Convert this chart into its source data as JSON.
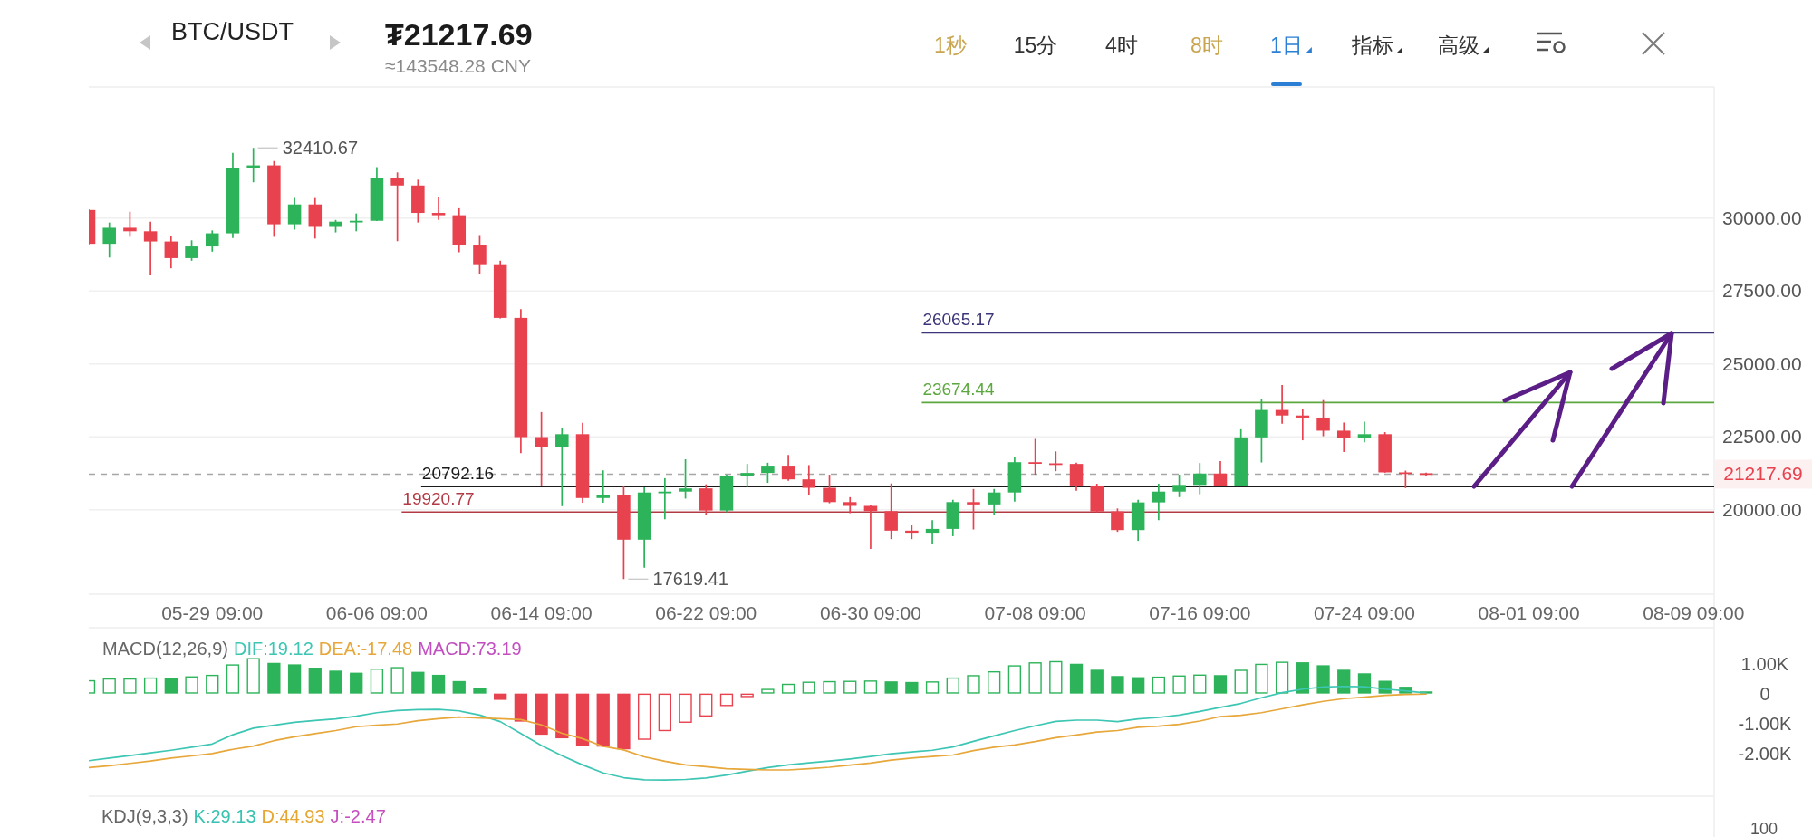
{
  "chart_data": [
    {
      "type": "other",
      "title": "BTC/USDT",
      "subtitle": "₮21217.69",
      "annotations": [
        "≈143548.28 CNY",
        "1秒",
        "15分",
        "4时",
        "8时",
        "1日",
        "指标",
        "高级"
      ]
    },
    {
      "type": "candlestick",
      "x": [
        "--05-23",
        "--05-24",
        "--05-25",
        "--05-26",
        "--05-27",
        "--05-28",
        "--05-29",
        "--05-30",
        "--05-31",
        "--06-01",
        "--06-02",
        "--06-03",
        "--06-04",
        "--06-05",
        "--06-06",
        "--06-07",
        "--06-08",
        "--06-09",
        "--06-10",
        "--06-11",
        "--06-12",
        "--06-13",
        "--06-14",
        "--06-15",
        "--06-16",
        "--06-17",
        "--06-18",
        "--06-19",
        "--06-20",
        "--06-21",
        "--06-22",
        "--06-23",
        "--06-24",
        "--06-25",
        "--06-26",
        "--06-27",
        "--06-28",
        "--06-29",
        "--06-30",
        "--07-01",
        "--07-02",
        "--07-03",
        "--07-04",
        "--07-05",
        "--07-06",
        "--07-07",
        "--07-08",
        "--07-09",
        "--07-10",
        "--07-11",
        "--07-12",
        "--07-13",
        "--07-14",
        "--07-15",
        "--07-16",
        "--07-17",
        "--07-18",
        "--07-19",
        "--07-20",
        "--07-21",
        "--07-22",
        "--07-23",
        "--07-24",
        "--07-25",
        "--07-26",
        "--07-27"
      ],
      "ohlc": [
        [
          30280,
          30300,
          29100,
          29120
        ],
        [
          29120,
          29850,
          28650,
          29670
        ],
        [
          29670,
          30220,
          29360,
          29550
        ],
        [
          29550,
          29880,
          28040,
          29200
        ],
        [
          29200,
          29390,
          28280,
          28630
        ],
        [
          28630,
          29240,
          28540,
          29030
        ],
        [
          29030,
          29580,
          28850,
          29480
        ],
        [
          29480,
          32240,
          29320,
          31730
        ],
        [
          31730,
          32410.67,
          31230,
          31810
        ],
        [
          31810,
          31960,
          29360,
          29790
        ],
        [
          29790,
          30690,
          29610,
          30470
        ],
        [
          30470,
          30690,
          29300,
          29700
        ],
        [
          29700,
          29940,
          29510,
          29880
        ],
        [
          29880,
          30160,
          29550,
          29910
        ],
        [
          29910,
          31750,
          29900,
          31390
        ],
        [
          31390,
          31570,
          29210,
          31120
        ],
        [
          31120,
          31320,
          29850,
          30180
        ],
        [
          30180,
          30710,
          29940,
          30100
        ],
        [
          30100,
          30340,
          28830,
          29080
        ],
        [
          29080,
          29420,
          28100,
          28420
        ],
        [
          28420,
          28540,
          26560,
          26580
        ],
        [
          26580,
          26880,
          21940,
          22490
        ],
        [
          22490,
          23350,
          20830,
          22150
        ],
        [
          22150,
          22800,
          20120,
          22590
        ],
        [
          22590,
          22980,
          20240,
          20400
        ],
        [
          20400,
          21350,
          20240,
          20500
        ],
        [
          20500,
          20830,
          17619.41,
          18970
        ],
        [
          18970,
          20770,
          18010,
          20590
        ],
        [
          20590,
          21080,
          19670,
          20620
        ],
        [
          20620,
          21730,
          20380,
          20730
        ],
        [
          20730,
          20870,
          19820,
          19970
        ],
        [
          19970,
          21200,
          19910,
          21140
        ],
        [
          21140,
          21570,
          20770,
          21260
        ],
        [
          21260,
          21610,
          20920,
          21510
        ],
        [
          21510,
          21880,
          20990,
          21040
        ],
        [
          21040,
          21530,
          20500,
          20750
        ],
        [
          20750,
          21200,
          20220,
          20260
        ],
        [
          20260,
          20430,
          19880,
          20130
        ],
        [
          20130,
          20160,
          18650,
          19950
        ],
        [
          19950,
          20900,
          18990,
          19280
        ],
        [
          19280,
          19460,
          18990,
          19210
        ],
        [
          19210,
          19640,
          18810,
          19340
        ],
        [
          19340,
          20340,
          19090,
          20260
        ],
        [
          20260,
          20710,
          19320,
          20180
        ],
        [
          20180,
          20710,
          19820,
          20590
        ],
        [
          20590,
          21820,
          20280,
          21630
        ],
        [
          21630,
          22430,
          21200,
          21590
        ],
        [
          21590,
          22000,
          21320,
          21570
        ],
        [
          21570,
          21610,
          20650,
          20830
        ],
        [
          20830,
          20890,
          19910,
          19940
        ],
        [
          19940,
          20040,
          19240,
          19300
        ],
        [
          19300,
          20340,
          18930,
          20250
        ],
        [
          20250,
          20890,
          19640,
          20620
        ],
        [
          20620,
          21200,
          20430,
          20850
        ],
        [
          20850,
          21600,
          20530,
          21240
        ],
        [
          21240,
          21670,
          20800,
          20810
        ],
        [
          20810,
          22760,
          20800,
          22480
        ],
        [
          22480,
          23800,
          21620,
          23420
        ],
        [
          23420,
          24280,
          22950,
          23230
        ],
        [
          23230,
          23450,
          22380,
          23160
        ],
        [
          23160,
          23760,
          22520,
          22710
        ],
        [
          22710,
          22990,
          21980,
          22450
        ],
        [
          22450,
          23020,
          22310,
          22590
        ],
        [
          22590,
          22660,
          21270,
          21280
        ],
        [
          21280,
          21340,
          20740,
          21250
        ],
        [
          21250,
          21270,
          21140,
          21217.69
        ]
      ],
      "colors": [
        "#e8424f",
        "#2db45a",
        "#e8424f",
        "#e8424f",
        "#e8424f",
        "#2db45a",
        "#2db45a",
        "#2db45a",
        "#2db45a",
        "#e8424f",
        "#2db45a",
        "#e8424f",
        "#2db45a",
        "#2db45a",
        "#2db45a",
        "#e8424f",
        "#e8424f",
        "#e8424f",
        "#e8424f",
        "#e8424f",
        "#e8424f",
        "#e8424f",
        "#e8424f",
        "#2db45a",
        "#e8424f",
        "#2db45a",
        "#e8424f",
        "#2db45a",
        "#2db45a",
        "#2db45a",
        "#e8424f",
        "#2db45a",
        "#2db45a",
        "#2db45a",
        "#e8424f",
        "#e8424f",
        "#e8424f",
        "#e8424f",
        "#e8424f",
        "#e8424f",
        "#e8424f",
        "#2db45a",
        "#2db45a",
        "#e8424f",
        "#2db45a",
        "#2db45a",
        "#e8424f",
        "#e8424f",
        "#e8424f",
        "#e8424f",
        "#e8424f",
        "#2db45a",
        "#2db45a",
        "#2db45a",
        "#2db45a",
        "#e8424f",
        "#2db45a",
        "#2db45a",
        "#e8424f",
        "#e8424f",
        "#e8424f",
        "#e8424f",
        "#2db45a",
        "#e8424f",
        "#e8424f",
        "#e8424f"
      ],
      "xlim": [
        "--05-23",
        "--08-10"
      ],
      "ylim": [
        17100,
        34500
      ],
      "xticks": [
        {
          "value": "--05-29",
          "label": "05-29 09:00"
        },
        {
          "value": "--06-06",
          "label": "06-06 09:00"
        },
        {
          "value": "--06-14",
          "label": "06-14 09:00"
        },
        {
          "value": "--06-22",
          "label": "06-22 09:00"
        },
        {
          "value": "--06-30",
          "label": "06-30 09:00"
        },
        {
          "value": "--07-08",
          "label": "07-08 09:00"
        },
        {
          "value": "--07-16",
          "label": "07-16 09:00"
        },
        {
          "value": "--07-24",
          "label": "07-24 09:00"
        },
        {
          "value": "--08-01",
          "label": "08-01 09:00"
        },
        {
          "value": "--08-09",
          "label": "08-09 09:00"
        }
      ],
      "yticks": [
        {
          "value": 20000,
          "label": "20000.00"
        },
        {
          "value": 22500,
          "label": "22500.00"
        },
        {
          "value": 25000,
          "label": "25000.00"
        },
        {
          "value": 27500,
          "label": "27500.00"
        },
        {
          "value": 30000,
          "label": "30000.00"
        }
      ],
      "grid": "y",
      "ref_lines": [
        {
          "axis": "y",
          "value": 26065.17,
          "label": "26065.17",
          "color": "#3b3579"
        },
        {
          "axis": "y",
          "value": 23674.44,
          "label": "23674.44",
          "color": "#5ba83e"
        },
        {
          "axis": "y",
          "value": 21217.69,
          "label": "21217.69",
          "color": "#a6a6a6",
          "line_style": "dashed"
        },
        {
          "axis": "y",
          "value": 20792.16,
          "label": "20792.16",
          "color": "#1a1a1a"
        },
        {
          "axis": "y",
          "value": 19920.77,
          "label": "19920.77",
          "color": "#b23a45"
        }
      ],
      "annotations": [
        {
          "text": "32410.67",
          "x": "--05-31",
          "y": 32410.67
        },
        {
          "text": "17619.41",
          "x": "--06-18",
          "y": 17619.41
        }
      ]
    },
    {
      "type": "bar",
      "title": "MACD(12,26,9)",
      "legend": "top left",
      "tick_labels": "y",
      "x": [
        "--05-23",
        "--05-24",
        "--05-25",
        "--05-26",
        "--05-27",
        "--05-28",
        "--05-29",
        "--05-30",
        "--05-31",
        "--06-01",
        "--06-02",
        "--06-03",
        "--06-04",
        "--06-05",
        "--06-06",
        "--06-07",
        "--06-08",
        "--06-09",
        "--06-10",
        "--06-11",
        "--06-12",
        "--06-13",
        "--06-14",
        "--06-15",
        "--06-16",
        "--06-17",
        "--06-18",
        "--06-19",
        "--06-20",
        "--06-21",
        "--06-22",
        "--06-23",
        "--06-24",
        "--06-25",
        "--06-26",
        "--06-27",
        "--06-28",
        "--06-29",
        "--06-30",
        "--07-01",
        "--07-02",
        "--07-03",
        "--07-04",
        "--07-05",
        "--07-06",
        "--07-07",
        "--07-08",
        "--07-09",
        "--07-10",
        "--07-11",
        "--07-12",
        "--07-13",
        "--07-14",
        "--07-15",
        "--07-16",
        "--07-17",
        "--07-18",
        "--07-19",
        "--07-20",
        "--07-21",
        "--07-22",
        "--07-23",
        "--07-24",
        "--07-25",
        "--07-26",
        "--07-27"
      ],
      "xlim": [
        "--05-23",
        "--08-10"
      ],
      "ylim": [
        -3350,
        2085
      ],
      "yticks": [
        {
          "value": 1000,
          "label": "1.00K"
        },
        0,
        {
          "value": -1000,
          "label": "-1.00K"
        },
        {
          "value": -2000,
          "label": "-2.00K"
        }
      ],
      "series": [
        {
          "name": "DIF:19.12",
          "type": "line",
          "color": "#3ec6b4",
          "values": [
            -2250,
            -2160,
            -2080,
            -1990,
            -1900,
            -1800,
            -1690,
            -1380,
            -1160,
            -1060,
            -960,
            -900,
            -850,
            -760,
            -640,
            -570,
            -540,
            -530,
            -580,
            -720,
            -940,
            -1340,
            -1740,
            -2080,
            -2390,
            -2660,
            -2820,
            -2890,
            -2900,
            -2880,
            -2830,
            -2730,
            -2600,
            -2480,
            -2390,
            -2320,
            -2260,
            -2190,
            -2110,
            -2020,
            -1960,
            -1900,
            -1790,
            -1600,
            -1420,
            -1240,
            -1080,
            -930,
            -890,
            -890,
            -940,
            -850,
            -800,
            -720,
            -600,
            -460,
            -330,
            -140,
            30,
            150,
            220,
            240,
            230,
            150,
            90,
            19.12
          ]
        },
        {
          "name": "DEA:-17.48",
          "type": "line",
          "color": "#e7a73a",
          "values": [
            -2480,
            -2420,
            -2340,
            -2260,
            -2160,
            -2090,
            -2010,
            -1870,
            -1760,
            -1580,
            -1450,
            -1340,
            -1240,
            -1110,
            -1060,
            -1020,
            -910,
            -840,
            -790,
            -820,
            -840,
            -870,
            -1050,
            -1330,
            -1510,
            -1770,
            -1890,
            -2120,
            -2270,
            -2390,
            -2450,
            -2520,
            -2540,
            -2560,
            -2560,
            -2520,
            -2470,
            -2400,
            -2330,
            -2230,
            -2160,
            -2110,
            -2060,
            -1910,
            -1800,
            -1720,
            -1610,
            -1480,
            -1390,
            -1290,
            -1240,
            -1130,
            -1090,
            -1030,
            -920,
            -770,
            -730,
            -640,
            -510,
            -380,
            -260,
            -170,
            -120,
            -60,
            -30,
            -17.48
          ]
        },
        {
          "name": "MACD:73.19",
          "type": "bar",
          "color": "#c24fc0",
          "colors": [
            "#2db45a",
            "#2db45a",
            "#2db45a",
            "#2db45a",
            "#2db45a",
            "#2db45a",
            "#2db45a",
            "#2db45a",
            "#2db45a",
            "#2db45a",
            "#2db45a",
            "#2db45a",
            "#2db45a",
            "#2db45a",
            "#2db45a",
            "#2db45a",
            "#2db45a",
            "#2db45a",
            "#2db45a",
            "#2db45a",
            "#e8424f",
            "#e8424f",
            "#e8424f",
            "#e8424f",
            "#e8424f",
            "#e8424f",
            "#e8424f",
            "#e8424f",
            "#e8424f",
            "#e8424f",
            "#e8424f",
            "#e8424f",
            "#e8424f",
            "#2db45a",
            "#2db45a",
            "#2db45a",
            "#2db45a",
            "#2db45a",
            "#2db45a",
            "#2db45a",
            "#2db45a",
            "#2db45a",
            "#2db45a",
            "#2db45a",
            "#2db45a",
            "#2db45a",
            "#2db45a",
            "#2db45a",
            "#2db45a",
            "#2db45a",
            "#2db45a",
            "#2db45a",
            "#2db45a",
            "#2db45a",
            "#2db45a",
            "#2db45a",
            "#2db45a",
            "#2db45a",
            "#2db45a",
            "#2db45a",
            "#2db45a",
            "#2db45a",
            "#2db45a",
            "#2db45a",
            "#2db45a",
            "#2db45a"
          ],
          "values": [
            450,
            510,
            510,
            540,
            520,
            580,
            630,
            980,
            1190,
            1030,
            980,
            870,
            770,
            700,
            840,
            890,
            730,
            630,
            420,
            190,
            -210,
            -940,
            -1380,
            -1500,
            -1760,
            -1780,
            -1870,
            -1550,
            -1260,
            -980,
            -770,
            -420,
            -120,
            160,
            330,
            400,
            420,
            430,
            440,
            410,
            390,
            410,
            540,
            620,
            750,
            950,
            1050,
            1090,
            1000,
            800,
            590,
            550,
            570,
            610,
            640,
            620,
            800,
            1000,
            1070,
            1050,
            950,
            800,
            680,
            430,
            230,
            73.19
          ]
        }
      ]
    },
    {
      "type": "other",
      "title": "KDJ(9,3,3)",
      "annotations": [
        "K:29.13",
        "D:44.93",
        "J:-2.47",
        "100"
      ]
    }
  ]
}
